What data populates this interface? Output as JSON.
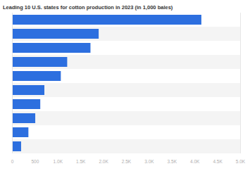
{
  "chart_data": {
    "type": "bar",
    "title": "Leading 10 U.S. states for cotton production in 2023 (in 1,000 bales)",
    "orientation": "horizontal",
    "categories": [
      null,
      null,
      null,
      null,
      null,
      null,
      null,
      null,
      null,
      null
    ],
    "values": [
      4150,
      1900,
      1720,
      1210,
      1070,
      710,
      620,
      510,
      360,
      200
    ],
    "color": "#2d6fdf",
    "xlim": [
      0,
      5000
    ],
    "xticks": [
      0,
      500,
      {
        "value": 1000,
        "label": "1.0K"
      },
      {
        "value": 1500,
        "label": "1.5K"
      },
      {
        "value": 2000,
        "label": "2.0K"
      },
      {
        "value": 2500,
        "label": "2.5K"
      },
      {
        "value": 3000,
        "label": "3.0K"
      },
      {
        "value": 3500,
        "label": "3.5K"
      },
      {
        "value": 4000,
        "label": "4.0K"
      },
      {
        "value": 4500,
        "label": "4.5K"
      },
      {
        "value": 5000,
        "label": "5.0K"
      }
    ],
    "grid": false,
    "tick_labels": "x"
  }
}
